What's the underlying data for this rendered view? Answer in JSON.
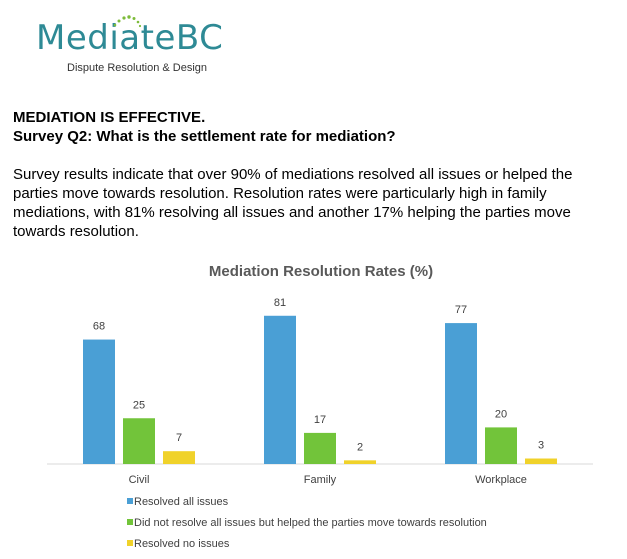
{
  "logo": {
    "word_a": "Media",
    "word_b": "te",
    "word_c": "BC",
    "tagline": "Dispute Resolution & Design"
  },
  "heading": {
    "line1": "MEDIATION IS EFFECTIVE.",
    "line2": "Survey Q2:  What is the settlement rate for mediation?"
  },
  "body_text": "Survey results indicate that over 90% of mediations resolved all issues or helped the parties move towards resolution. Resolution rates were particularly high in family mediations, with 81% resolving all issues and another 17% helping the parties move towards resolution.",
  "colors": {
    "teal": "#2e8a95",
    "green_dot": "#7dbb3a"
  },
  "chart_data": {
    "type": "bar",
    "title": "Mediation Resolution Rates (%)",
    "categories": [
      "Civil",
      "Family",
      "Workplace"
    ],
    "ylim": [
      0,
      85
    ],
    "grid": false,
    "legend_position": "bottom",
    "series": [
      {
        "name": "Resolved all issues",
        "color": "#4a9fd5",
        "values": [
          68,
          81,
          77
        ]
      },
      {
        "name": "Did not resolve all issues but helped the parties move towards resolution",
        "color": "#72c43a",
        "values": [
          25,
          17,
          20
        ]
      },
      {
        "name": "Resolved no issues",
        "color": "#f0d22a",
        "values": [
          7,
          2,
          3
        ]
      }
    ]
  }
}
